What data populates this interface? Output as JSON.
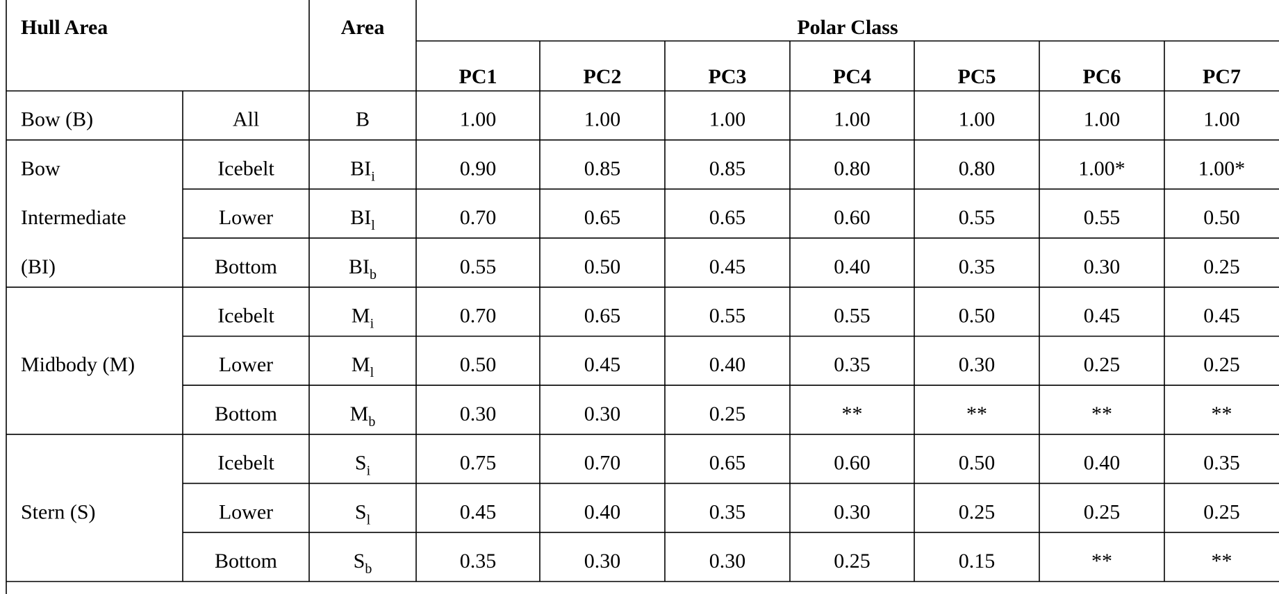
{
  "table": {
    "headers": {
      "hull_area": "Hull Area",
      "area": "Area",
      "polar_class": "Polar Class",
      "classes": [
        "PC1",
        "PC2",
        "PC3",
        "PC4",
        "PC5",
        "PC6",
        "PC7"
      ]
    },
    "groups": [
      {
        "label": [
          "Bow (B)"
        ],
        "rows": [
          {
            "sub": "All",
            "area": {
              "base": "B"
            },
            "values": [
              "1.00",
              "1.00",
              "1.00",
              "1.00",
              "1.00",
              "1.00",
              "1.00"
            ]
          }
        ]
      },
      {
        "label": [
          "Bow",
          "Intermediate",
          "(BI)"
        ],
        "rows": [
          {
            "sub": "Icebelt",
            "area": {
              "base": "BI",
              "sub": "i"
            },
            "values": [
              "0.90",
              "0.85",
              "0.85",
              "0.80",
              "0.80",
              "1.00*",
              "1.00*"
            ]
          },
          {
            "sub": "Lower",
            "area": {
              "base": "BI",
              "sub": "l"
            },
            "values": [
              "0.70",
              "0.65",
              "0.65",
              "0.60",
              "0.55",
              "0.55",
              "0.50"
            ]
          },
          {
            "sub": "Bottom",
            "area": {
              "base": "BI",
              "sub": "b"
            },
            "values": [
              "0.55",
              "0.50",
              "0.45",
              "0.40",
              "0.35",
              "0.30",
              "0.25"
            ]
          }
        ]
      },
      {
        "label": [
          "Midbody (M)"
        ],
        "rows": [
          {
            "sub": "Icebelt",
            "area": {
              "base": "M",
              "sub": "i"
            },
            "values": [
              "0.70",
              "0.65",
              "0.55",
              "0.55",
              "0.50",
              "0.45",
              "0.45"
            ]
          },
          {
            "sub": "Lower",
            "area": {
              "base": "M",
              "sub": "l"
            },
            "values": [
              "0.50",
              "0.45",
              "0.40",
              "0.35",
              "0.30",
              "0.25",
              "0.25"
            ]
          },
          {
            "sub": "Bottom",
            "area": {
              "base": "M",
              "sub": "b"
            },
            "values": [
              "0.30",
              "0.30",
              "0.25",
              "**",
              "**",
              "**",
              "**"
            ]
          }
        ]
      },
      {
        "label": [
          "Stern (S)"
        ],
        "rows": [
          {
            "sub": "Icebelt",
            "area": {
              "base": "S",
              "sub": "i"
            },
            "values": [
              "0.75",
              "0.70",
              "0.65",
              "0.60",
              "0.50",
              "0.40",
              "0.35"
            ]
          },
          {
            "sub": "Lower",
            "area": {
              "base": "S",
              "sub": "l"
            },
            "values": [
              "0.45",
              "0.40",
              "0.35",
              "0.30",
              "0.25",
              "0.25",
              "0.25"
            ]
          },
          {
            "sub": "Bottom",
            "area": {
              "base": "S",
              "sub": "b"
            },
            "values": [
              "0.35",
              "0.30",
              "0.30",
              "0.25",
              "0.15",
              "**",
              "**"
            ]
          }
        ]
      }
    ]
  }
}
